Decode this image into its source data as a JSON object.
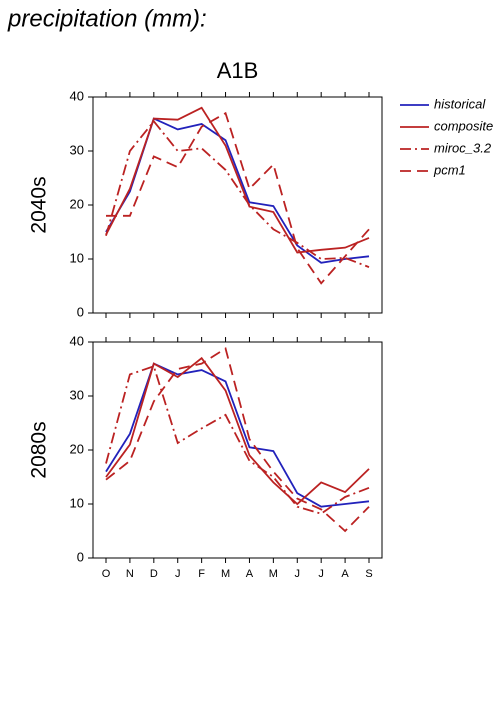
{
  "title": "precipitation (mm):",
  "chart_data": [
    {
      "type": "line",
      "title": "A1B",
      "ylabel": "2040s",
      "ylim": [
        0,
        40
      ],
      "yticks": [
        0,
        10,
        20,
        30,
        40
      ],
      "series": [
        {
          "name": "historical",
          "color": "#2222bb",
          "style": "solid",
          "values": [
            15,
            22.5,
            36,
            34,
            35,
            32,
            20.5,
            19.8,
            12.5,
            9.3,
            10,
            10.5
          ]
        },
        {
          "name": "composite",
          "color": "#bb2222",
          "style": "solid",
          "values": [
            14.5,
            23,
            36,
            35.8,
            38,
            31,
            19.7,
            18.7,
            11.2,
            11.7,
            12.1,
            13.9
          ]
        },
        {
          "name": "miroc_3.2",
          "color": "#bb2222",
          "style": "dashdot",
          "values": [
            14.3,
            30,
            35.5,
            30,
            30.5,
            26.5,
            20,
            15.5,
            13,
            10,
            10.2,
            8.5
          ]
        },
        {
          "name": "pcm1",
          "color": "#bb2222",
          "style": "dash",
          "values": [
            18,
            18,
            29,
            27,
            34.5,
            37,
            23,
            27.5,
            12,
            5.5,
            10.5,
            15.5
          ]
        }
      ]
    },
    {
      "type": "line",
      "ylabel": "2080s",
      "categories": [
        "O",
        "N",
        "D",
        "J",
        "F",
        "M",
        "A",
        "M",
        "J",
        "J",
        "A",
        "S"
      ],
      "ylim": [
        0,
        40
      ],
      "yticks": [
        0,
        10,
        20,
        30,
        40
      ],
      "series": [
        {
          "color": "#2222bb",
          "style": "solid",
          "values": [
            16,
            23,
            36,
            34,
            34.8,
            32.7,
            20.5,
            19.8,
            12,
            9.5,
            10,
            10.5
          ]
        },
        {
          "color": "#bb2222",
          "style": "solid",
          "values": [
            15,
            21,
            36,
            33.5,
            37,
            31,
            19,
            14,
            10,
            14,
            12.2,
            16.5
          ]
        },
        {
          "color": "#bb2222",
          "style": "dashdot",
          "values": [
            17.5,
            34,
            35.5,
            21.3,
            24,
            26.5,
            18,
            15,
            9.5,
            8.2,
            11.3,
            13
          ]
        },
        {
          "color": "#bb2222",
          "style": "dash",
          "values": [
            14.5,
            18,
            29,
            35,
            36,
            38.8,
            22,
            16,
            11,
            9,
            5,
            9.5
          ]
        }
      ]
    }
  ]
}
